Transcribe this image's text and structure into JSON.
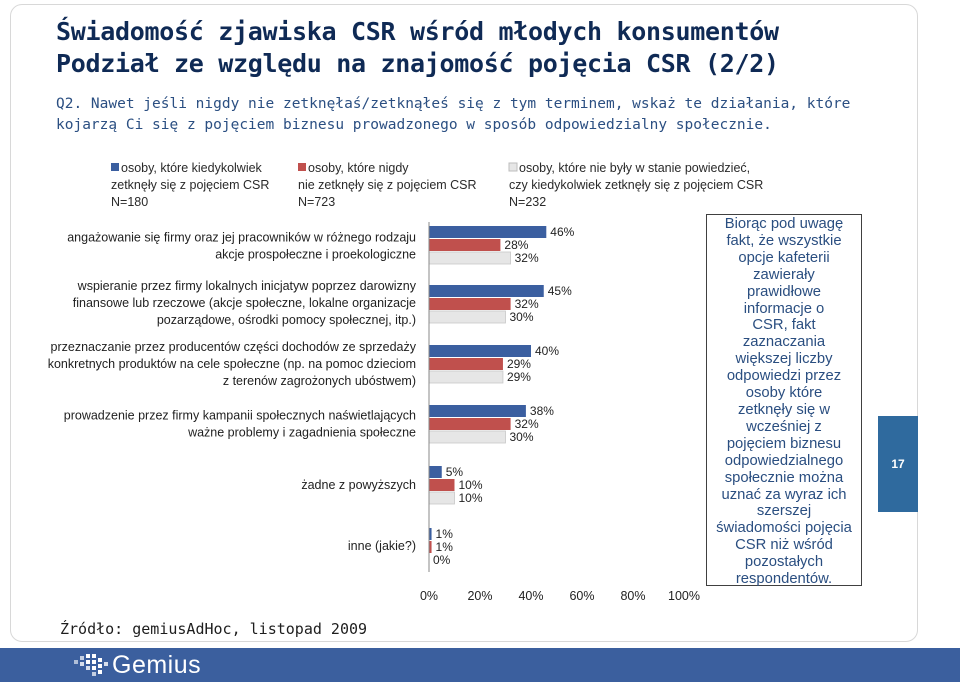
{
  "slide": {
    "title_line1": "Świadomość zjawiska CSR wśród młodych konsumentów",
    "title_line2": "Podział ze względu na znajomość pojęcia CSR (2/2)",
    "question": "Q2. Nawet jeśli nigdy nie zetknęłaś/zetknąłeś się z tym terminem, wskaż te działania, które kojarzą Ci się z pojęciem biznesu prowadzonego w sposób odpowiedzialny społecznie.",
    "source": "Źródło: gemiusAdHoc, listopad 2009",
    "page_number": "17",
    "logo": "Gemius",
    "note_lines": [
      "Biorąc pod uwagę",
      "fakt, że wszystkie",
      "opcje kafeterii",
      "zawierały",
      "prawidłowe",
      "informacje o",
      "CSR, fakt",
      "zaznaczania",
      "większej liczby",
      "odpowiedzi przez",
      "osoby które",
      "zetknęły się w",
      "wcześniej z",
      "pojęciem biznesu",
      "odpowiedzialnego",
      "społecznie można",
      "uznać za wyraz ich",
      "szerszej",
      "świadomości pojęcia",
      "CSR niż wśród",
      "pozostałych",
      "respondentów."
    ]
  },
  "chart_data": {
    "type": "bar",
    "orientation": "horizontal",
    "categories": [
      [
        "angażowanie się firmy oraz jej pracowników w różnego rodzaju",
        "akcje prospołeczne i proekologiczne"
      ],
      [
        "wspieranie przez firmy lokalnych inicjatyw poprzez darowizny",
        "finansowe lub rzeczowe (akcje społeczne, lokalne organizacje",
        "pozarządowe, ośrodki pomocy społecznej, itp.)"
      ],
      [
        "przeznaczanie przez producentów części dochodów ze sprzedaży",
        "konkretnych produktów na cele społeczne (np. na pomoc dzieciom",
        "z terenów zagrożonych ubóstwem)"
      ],
      [
        "prowadzenie przez firmy kampanii społecznych naświetlających",
        "ważne problemy i zagadnienia społeczne"
      ],
      [
        "żadne z powyższych"
      ],
      [
        "inne (jakie?)"
      ]
    ],
    "series": [
      {
        "name": [
          "osoby, które kiedykolwiek",
          "zetknęły się z pojęciem CSR",
          "N=180"
        ],
        "color": "#3b5fa0",
        "values": [
          46,
          45,
          40,
          38,
          5,
          1
        ]
      },
      {
        "name": [
          "osoby, które nigdy",
          "nie zetknęły się z pojęciem CSR",
          "N=723"
        ],
        "color": "#c0504d",
        "values": [
          28,
          32,
          29,
          32,
          10,
          1
        ]
      },
      {
        "name": [
          "osoby, które nie były w stanie powiedzieć,",
          "czy kiedykolwiek zetknęły się z pojęciem CSR",
          "N=232"
        ],
        "color": "#e6e6e6",
        "values": [
          32,
          30,
          29,
          30,
          10,
          0
        ]
      }
    ],
    "value_suffix": "%",
    "xlim": [
      0,
      100
    ],
    "x_ticks": [
      "0%",
      "20%",
      "40%",
      "60%",
      "80%",
      "100%"
    ],
    "legend_position": "top",
    "grid": false
  }
}
